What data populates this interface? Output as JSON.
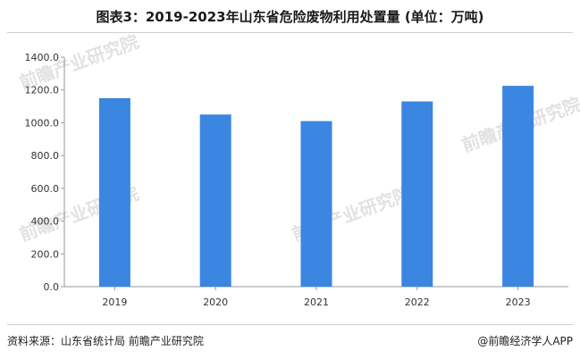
{
  "title": "图表3：2019-2023年山东省危险废物利用处置量 (单位：万吨)",
  "source": "资料来源：山东省统计局 前瞻产业研究院",
  "credit": "@前瞻经济学人APP",
  "watermark": "前瞻产业研究院",
  "colors": {
    "bar": "#3b86e0",
    "axis": "#999999",
    "text": "#333333"
  },
  "chart_data": {
    "type": "bar",
    "title": "图表3：2019-2023年山东省危险废物利用处置量 (单位：万吨)",
    "categories": [
      "2019",
      "2020",
      "2021",
      "2022",
      "2023"
    ],
    "values": [
      1150,
      1050,
      1010,
      1130,
      1225
    ],
    "y_ticks": [
      "0.0",
      "200.0",
      "400.0",
      "600.0",
      "800.0",
      "1000.0",
      "1200.0",
      "1400.0"
    ],
    "ylim": [
      0,
      1400
    ],
    "grid": false,
    "legend": "none"
  }
}
